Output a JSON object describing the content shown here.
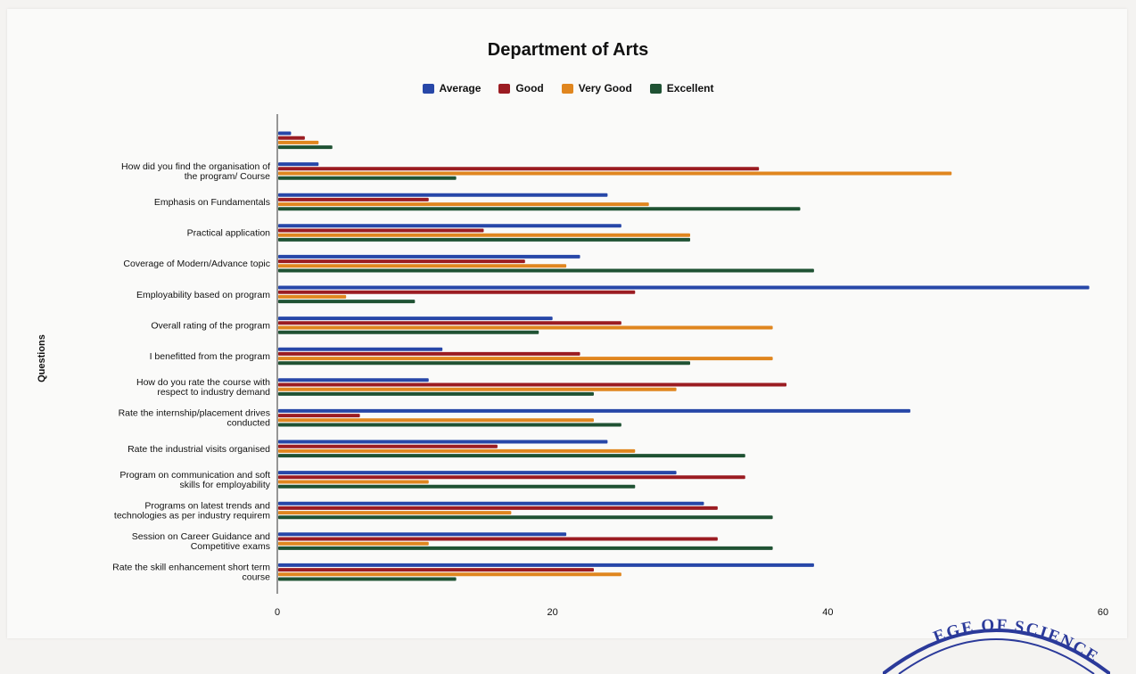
{
  "chart_data": {
    "type": "bar",
    "orientation": "horizontal",
    "title": "Department of Arts",
    "xlabel": "",
    "ylabel": "Questions",
    "xlim": [
      0,
      60
    ],
    "x_ticks": [
      "0",
      "20",
      "40",
      "60"
    ],
    "grid": false,
    "legend_position": "top",
    "categories": [
      "",
      "How did you find the organisation of the program/ Course",
      "Emphasis on Fundamentals",
      "Practical application",
      "Coverage of Modern/Advance topic",
      "Employability based on program",
      "Overall rating of the program",
      "I benefitted from the program",
      "How do you rate the course with respect to industry demand",
      "Rate the internship/placement drives conducted",
      "Rate the industrial visits organised",
      "Program on communication and soft skills for employability",
      "Programs on latest trends and technologies as per industry requirem",
      "Session on Career Guidance and Competitive exams",
      "Rate the skill enhancement short term course"
    ],
    "series": [
      {
        "name": "Average",
        "color": "#2747a8",
        "values": [
          1,
          3,
          24,
          25,
          22,
          59,
          20,
          12,
          11,
          46,
          24,
          29,
          31,
          21,
          39
        ]
      },
      {
        "name": "Good",
        "color": "#9b1c22",
        "values": [
          2,
          35,
          11,
          15,
          18,
          26,
          25,
          22,
          37,
          6,
          16,
          34,
          32,
          32,
          23
        ]
      },
      {
        "name": "Very Good",
        "color": "#e0861f",
        "values": [
          3,
          49,
          27,
          30,
          21,
          5,
          36,
          36,
          29,
          23,
          26,
          11,
          17,
          11,
          25
        ]
      },
      {
        "name": "Excellent",
        "color": "#1f5233",
        "values": [
          4,
          13,
          38,
          30,
          39,
          10,
          19,
          30,
          23,
          25,
          34,
          26,
          36,
          36,
          13
        ]
      }
    ]
  },
  "seal": {
    "text": "EGE OF SCIENCE"
  }
}
